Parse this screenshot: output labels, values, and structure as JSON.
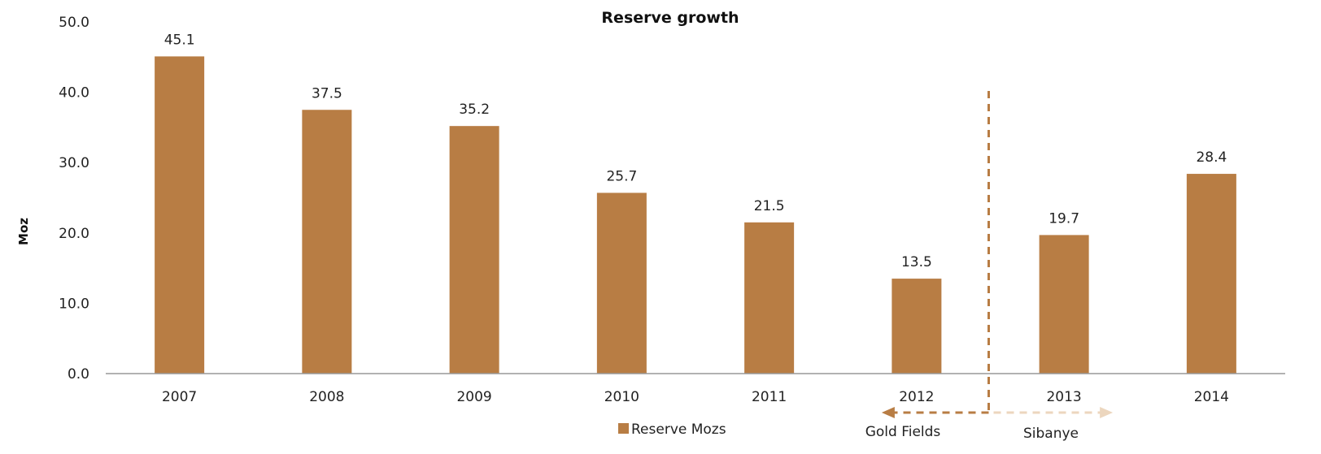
{
  "chart_data": {
    "type": "bar",
    "title": "Reserve growth",
    "xlabel": "",
    "ylabel": "Moz",
    "ylim": [
      0,
      50
    ],
    "yticks": [
      "0.0",
      "10.0",
      "20.0",
      "30.0",
      "40.0",
      "50.0"
    ],
    "categories": [
      "2007",
      "2008",
      "2009",
      "2010",
      "2011",
      "2012",
      "2013",
      "2014"
    ],
    "series": [
      {
        "name": "Reserve Mozs",
        "values": [
          45.1,
          37.5,
          35.2,
          25.7,
          21.5,
          13.5,
          19.7,
          28.4
        ],
        "labels": [
          "45.1",
          "37.5",
          "35.2",
          "25.7",
          "21.5",
          "13.5",
          "19.7",
          "28.4"
        ],
        "color": "#b87d44"
      }
    ],
    "legend": {
      "position": "bottom"
    },
    "grid": false,
    "annotations": {
      "left": "Gold Fields",
      "right": "Sibanye",
      "left_color": "#b87d44",
      "right_color": "#ecd6be"
    }
  }
}
